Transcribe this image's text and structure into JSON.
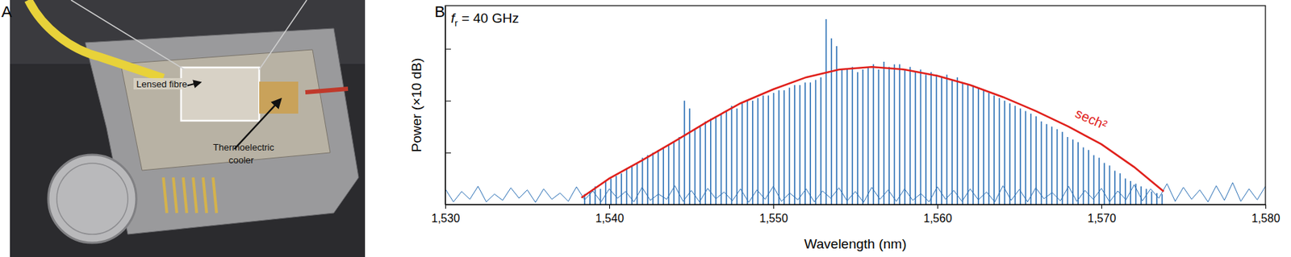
{
  "panels": {
    "a": {
      "label": "A",
      "annotations": [
        "Lensed fibre",
        [
          "Thermoelectric",
          "cooler"
        ]
      ]
    },
    "b": {
      "label": "B"
    }
  },
  "chart_data": {
    "type": "line",
    "annotations": [
      {
        "text": "f",
        "subscript": "r",
        "suffix": " = 40 GHz"
      }
    ],
    "x_label": "Wavelength (nm)",
    "y_label": "Power (×10 dB)",
    "xlim": [
      1530,
      1580
    ],
    "xticks": [
      {
        "value": 1530,
        "label": "1,530"
      },
      {
        "value": 1540,
        "label": "1,540"
      },
      {
        "value": 1550,
        "label": "1,550"
      },
      {
        "value": 1560,
        "label": "1,560"
      },
      {
        "value": 1570,
        "label": "1,570"
      },
      {
        "value": 1580,
        "label": "1,580"
      }
    ],
    "ylim": [
      0,
      3.83
    ],
    "yticks": [
      0,
      1,
      2,
      3
    ],
    "tick_labels": "x",
    "series": [
      {
        "type": "stem",
        "color": "#2a6fb5",
        "x": [
          1538.5,
          1538.82,
          1539.14,
          1539.46,
          1539.78,
          1540.1,
          1540.42,
          1540.74,
          1541.06,
          1541.38,
          1541.7,
          1542.02,
          1542.34,
          1542.66,
          1542.98,
          1543.3,
          1543.62,
          1543.94,
          1544.26,
          1544.58,
          1544.9,
          1545.22,
          1545.54,
          1545.86,
          1546.18,
          1546.5,
          1546.82,
          1547.14,
          1547.46,
          1547.78,
          1548.1,
          1548.42,
          1548.74,
          1549.06,
          1549.38,
          1549.7,
          1550.02,
          1550.34,
          1550.66,
          1550.98,
          1551.3,
          1551.62,
          1551.94,
          1552.26,
          1552.58,
          1552.9,
          1553.22,
          1553.54,
          1553.86,
          1554.18,
          1554.5,
          1554.82,
          1555.14,
          1555.46,
          1555.78,
          1556.1,
          1556.42,
          1556.74,
          1557.06,
          1557.38,
          1557.7,
          1558.02,
          1558.34,
          1558.66,
          1558.98,
          1559.3,
          1559.62,
          1559.94,
          1560.26,
          1560.58,
          1560.9,
          1561.22,
          1561.54,
          1561.86,
          1562.18,
          1562.5,
          1562.82,
          1563.14,
          1563.46,
          1563.78,
          1564.1,
          1564.42,
          1564.74,
          1565.06,
          1565.38,
          1565.7,
          1566.02,
          1566.34,
          1566.66,
          1566.98,
          1567.3,
          1567.62,
          1567.94,
          1568.26,
          1568.58,
          1568.9,
          1569.22,
          1569.54,
          1569.86,
          1570.18,
          1570.5,
          1570.82,
          1571.14,
          1571.46,
          1571.78,
          1572.1,
          1572.42,
          1572.74,
          1573.06,
          1573.38,
          1573.7
        ],
        "values": [
          0.2,
          0.25,
          0.35,
          0.3,
          0.45,
          0.5,
          0.55,
          0.6,
          0.7,
          0.75,
          0.8,
          0.9,
          0.95,
          1.0,
          1.05,
          1.1,
          1.15,
          1.2,
          1.3,
          2.0,
          1.85,
          1.45,
          1.5,
          1.6,
          1.65,
          1.7,
          1.75,
          1.8,
          1.9,
          1.85,
          1.95,
          2.0,
          2.0,
          2.05,
          2.1,
          2.1,
          2.15,
          2.2,
          2.2,
          2.25,
          2.3,
          2.3,
          2.35,
          2.35,
          2.4,
          2.45,
          3.57,
          3.2,
          3.05,
          2.6,
          2.6,
          2.65,
          2.55,
          2.6,
          2.65,
          2.7,
          2.6,
          2.75,
          2.65,
          2.7,
          2.7,
          2.6,
          2.65,
          2.55,
          2.6,
          2.5,
          2.55,
          2.5,
          2.45,
          2.5,
          2.4,
          2.45,
          2.35,
          2.3,
          2.3,
          2.25,
          2.2,
          2.15,
          2.1,
          2.05,
          2.0,
          1.95,
          1.9,
          1.85,
          1.8,
          1.75,
          1.7,
          1.6,
          1.55,
          1.5,
          1.45,
          1.4,
          1.3,
          1.25,
          1.2,
          1.1,
          1.05,
          0.95,
          0.9,
          0.8,
          0.75,
          0.65,
          0.6,
          0.5,
          0.45,
          0.4,
          0.35,
          0.3,
          0.25,
          0.22,
          0.2
        ]
      },
      {
        "type": "line",
        "color": "#2a6fb5",
        "x": [
          1530,
          1530.5,
          1531,
          1531.5,
          1532,
          1532.5,
          1533,
          1533.5,
          1534,
          1534.5,
          1535,
          1535.5,
          1536,
          1536.5,
          1537,
          1537.5,
          1538,
          1538.5,
          1539,
          1539.5,
          1540,
          1540.5,
          1541,
          1541.5,
          1542,
          1542.5,
          1543,
          1543.5,
          1544,
          1544.5,
          1545,
          1545.5,
          1546,
          1546.5,
          1547,
          1547.5,
          1548,
          1548.5,
          1549,
          1549.5,
          1550,
          1550.5,
          1551,
          1551.5,
          1552,
          1552.5,
          1553,
          1553.5,
          1554,
          1554.5,
          1555,
          1555.5,
          1556,
          1556.5,
          1557,
          1557.5,
          1558,
          1558.5,
          1559,
          1559.5,
          1560,
          1560.5,
          1561,
          1561.5,
          1562,
          1562.5,
          1563,
          1563.5,
          1564,
          1564.5,
          1565,
          1565.5,
          1566,
          1566.5,
          1567,
          1567.5,
          1568,
          1568.5,
          1569,
          1569.5,
          1570,
          1570.5,
          1571,
          1571.5,
          1572,
          1572.5,
          1573,
          1573.5,
          1574,
          1574.5,
          1575,
          1575.5,
          1576,
          1576.5,
          1577,
          1577.5,
          1578,
          1578.5,
          1579,
          1579.5,
          1580
        ],
        "values": [
          0.3,
          0.05,
          0.25,
          0.1,
          0.35,
          0.05,
          0.2,
          0.08,
          0.32,
          0.12,
          0.28,
          0.04,
          0.3,
          0.1,
          0.22,
          0.06,
          0.34,
          0.09,
          0.26,
          0.05,
          0.3,
          0.12,
          0.25,
          0.05,
          0.33,
          0.08,
          0.2,
          0.1,
          0.36,
          0.06,
          0.27,
          0.05,
          0.31,
          0.11,
          0.24,
          0.07,
          0.3,
          0.04,
          0.28,
          0.1,
          0.35,
          0.06,
          0.22,
          0.09,
          0.3,
          0.05,
          0.26,
          0.12,
          0.32,
          0.07,
          0.25,
          0.04,
          0.33,
          0.1,
          0.28,
          0.06,
          0.3,
          0.08,
          0.21,
          0.05,
          0.34,
          0.1,
          0.27,
          0.06,
          0.3,
          0.09,
          0.24,
          0.05,
          0.36,
          0.08,
          0.29,
          0.05,
          0.32,
          0.11,
          0.23,
          0.07,
          0.35,
          0.06,
          0.27,
          0.1,
          0.31,
          0.05,
          0.26,
          0.09,
          0.38,
          0.07,
          0.3,
          0.12,
          0.4,
          0.06,
          0.33,
          0.1,
          0.28,
          0.05,
          0.36,
          0.08,
          0.42,
          0.06,
          0.3,
          0.09,
          0.35
        ]
      },
      {
        "name": "sech²",
        "type": "line",
        "color": "#e0201b",
        "x": [
          1538.3,
          1540,
          1542,
          1544,
          1546,
          1548,
          1550,
          1552,
          1554,
          1556,
          1558,
          1560,
          1562,
          1564,
          1566,
          1568,
          1570,
          1572,
          1573.8
        ],
        "values": [
          0.13,
          0.5,
          0.85,
          1.22,
          1.6,
          1.95,
          2.22,
          2.45,
          2.6,
          2.65,
          2.6,
          2.48,
          2.3,
          2.07,
          1.8,
          1.5,
          1.16,
          0.72,
          0.25
        ]
      }
    ]
  }
}
